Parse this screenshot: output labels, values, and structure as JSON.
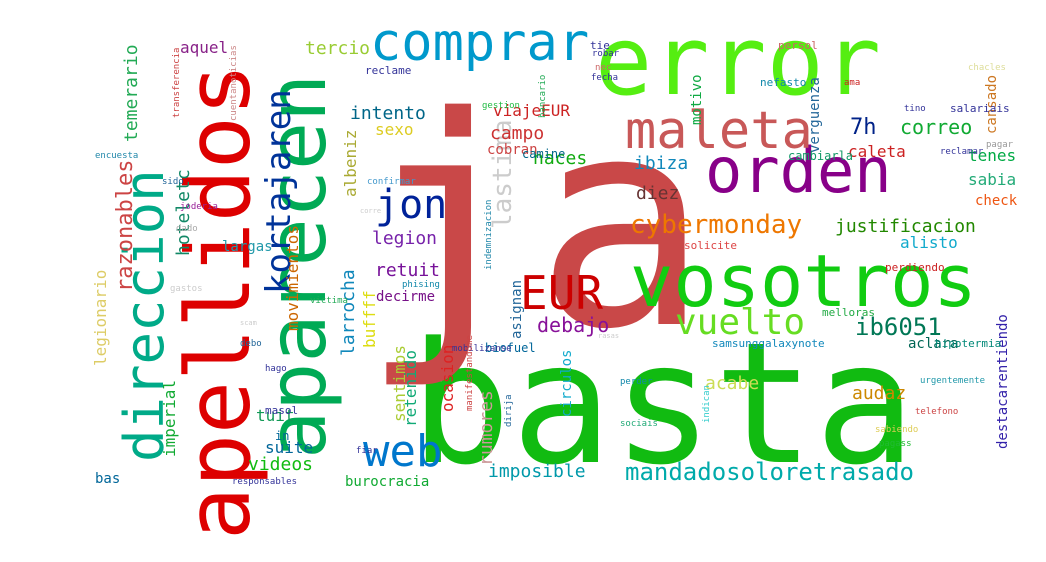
{
  "words": [
    {
      "text": "basta",
      "color": "#11bb11",
      "rotate": false
    },
    {
      "text": "ja",
      "color": "#c94848",
      "rotate": false
    },
    {
      "text": "error",
      "color": "#55ee11",
      "rotate": false
    },
    {
      "text": "apellidos",
      "color": "#dd0000",
      "rotate": true
    },
    {
      "text": "aparecen",
      "color": "#00aa55",
      "rotate": true
    },
    {
      "text": "vosotros",
      "color": "#11cc11",
      "rotate": false
    },
    {
      "text": "orden",
      "color": "#880088",
      "rotate": false
    },
    {
      "text": "comprar",
      "color": "#0099cc",
      "rotate": false
    },
    {
      "text": "maleta",
      "color": "#c85858",
      "rotate": false
    },
    {
      "text": "direccion",
      "color": "#00aa88",
      "rotate": true
    },
    {
      "text": "EUR",
      "color": "#cc0000",
      "rotate": false
    },
    {
      "text": "web",
      "color": "#0077cc",
      "rotate": false
    },
    {
      "text": "kortajaren",
      "color": "#003399",
      "rotate": true
    },
    {
      "text": "jon",
      "color": "#002299",
      "rotate": false
    },
    {
      "text": "vuelto",
      "color": "#66dd22",
      "rotate": false
    },
    {
      "text": "lastima",
      "color": "#cccccc",
      "rotate": true
    },
    {
      "text": "cybermonday",
      "color": "#ee7700",
      "rotate": false
    },
    {
      "text": "mandadosoloretrasado",
      "color": "#00aaaa",
      "rotate": false
    },
    {
      "text": "razonables",
      "color": "#cc4444",
      "rotate": true
    },
    {
      "text": "ib6051",
      "color": "#007755",
      "rotate": false
    },
    {
      "text": "debajo",
      "color": "#881199",
      "rotate": false
    },
    {
      "text": "correo",
      "color": "#11aa33",
      "rotate": false
    },
    {
      "text": "justificacion",
      "color": "#228800",
      "rotate": false
    },
    {
      "text": "imposible",
      "color": "#0099aa",
      "rotate": false
    },
    {
      "text": "videos",
      "color": "#11bb11",
      "rotate": false
    },
    {
      "text": "rumores",
      "color": "#cc9999",
      "rotate": true
    },
    {
      "text": "tercio",
      "color": "#99cc33",
      "rotate": false
    },
    {
      "text": "7h",
      "color": "#002288",
      "rotate": false
    },
    {
      "text": "haces",
      "color": "#11aa11",
      "rotate": false
    },
    {
      "text": "intento",
      "color": "#006688",
      "rotate": false
    },
    {
      "text": "viajeEUR",
      "color": "#cc2222",
      "rotate": false
    },
    {
      "text": "campo",
      "color": "#cc3333",
      "rotate": false
    },
    {
      "text": "legion",
      "color": "#7722aa",
      "rotate": false
    },
    {
      "text": "retuit",
      "color": "#771199",
      "rotate": false
    },
    {
      "text": "sexo",
      "color": "#ddcc22",
      "rotate": false
    },
    {
      "text": "temerario",
      "color": "#22aa55",
      "rotate": true
    },
    {
      "text": "hoteletc",
      "color": "#118866",
      "rotate": true
    },
    {
      "text": "legionario",
      "color": "#ddcc66",
      "rotate": true
    },
    {
      "text": "movimientos",
      "color": "#cc6600",
      "rotate": true
    },
    {
      "text": "imperial",
      "color": "#11aa33",
      "rotate": true
    },
    {
      "text": "suite",
      "color": "#006699",
      "rotate": false
    },
    {
      "text": "tuit",
      "color": "#119955",
      "rotate": false
    },
    {
      "text": "burocracia",
      "color": "#11aa33",
      "rotate": false
    },
    {
      "text": "larrocha",
      "color": "#1188bb",
      "rotate": true
    },
    {
      "text": "albeniz",
      "color": "#aaaa33",
      "rotate": true
    },
    {
      "text": "sentimos",
      "color": "#aacc33",
      "rotate": true
    },
    {
      "text": "retenido",
      "color": "#11aa77",
      "rotate": true
    },
    {
      "text": "ocasion",
      "color": "#dd2222",
      "rotate": true
    },
    {
      "text": "acabe",
      "color": "#ccdd55",
      "rotate": false
    },
    {
      "text": "audaz",
      "color": "#cc8800",
      "rotate": false
    },
    {
      "text": "ibiza",
      "color": "#1188bb",
      "rotate": false
    },
    {
      "text": "diez",
      "color": "#663333",
      "rotate": false
    },
    {
      "text": "tenes",
      "color": "#00aa44",
      "rotate": false
    },
    {
      "text": "sabia",
      "color": "#22aa77",
      "rotate": false
    },
    {
      "text": "caleta",
      "color": "#cc2222",
      "rotate": false
    },
    {
      "text": "alisto",
      "color": "#11aacc",
      "rotate": false
    },
    {
      "text": "aclara",
      "color": "#006655",
      "rotate": false
    },
    {
      "text": "aquel",
      "color": "#882288",
      "rotate": false
    },
    {
      "text": "largas",
      "color": "#2299aa",
      "rotate": false
    },
    {
      "text": "decirme",
      "color": "#771188",
      "rotate": false
    },
    {
      "text": "cobran",
      "color": "#cc4444",
      "rotate": false
    },
    {
      "text": "buffff",
      "color": "#dddd11",
      "rotate": true
    },
    {
      "text": "circulos",
      "color": "#11aacc",
      "rotate": true
    },
    {
      "text": "motivo",
      "color": "#11aa44",
      "rotate": true
    },
    {
      "text": "verguenza",
      "color": "#226699",
      "rotate": true
    },
    {
      "text": "cansado",
      "color": "#cc7722",
      "rotate": true
    },
    {
      "text": "destacarentiendo",
      "color": "#3322aa",
      "rotate": true
    },
    {
      "text": "cambiarla",
      "color": "#119966",
      "rotate": false
    },
    {
      "text": "camine",
      "color": "#006688",
      "rotate": false
    },
    {
      "text": "check",
      "color": "#ee5511",
      "rotate": false
    },
    {
      "text": "asignan",
      "color": "#226699",
      "rotate": true
    },
    {
      "text": "biofuel",
      "color": "#006699",
      "rotate": false
    },
    {
      "text": "in",
      "color": "#006699",
      "rotate": false
    },
    {
      "text": "masol",
      "color": "#333399",
      "rotate": false
    },
    {
      "text": "bas",
      "color": "#006699",
      "rotate": false
    },
    {
      "text": "nefasto",
      "color": "#1188aa",
      "rotate": false
    },
    {
      "text": "hipotermia",
      "color": "#008877",
      "rotate": false
    },
    {
      "text": "perdiendo",
      "color": "#cc2222",
      "rotate": false
    },
    {
      "text": "solicite",
      "color": "#dd4444",
      "rotate": false
    },
    {
      "text": "melloras",
      "color": "#22aa44",
      "rotate": false
    },
    {
      "text": "samsunggalaxynote",
      "color": "#1188bb",
      "rotate": false
    },
    {
      "text": "salariais",
      "color": "#333399",
      "rotate": false
    },
    {
      "text": "persol",
      "color": "#cc6666",
      "rotate": false
    },
    {
      "text": "reclame",
      "color": "#333399",
      "rotate": false
    },
    {
      "text": "tie",
      "color": "#333399",
      "rotate": false
    },
    {
      "text": "gestion",
      "color": "#22bb44",
      "rotate": false
    },
    {
      "text": "transferencia",
      "color": "#cc4444",
      "rotate": true
    },
    {
      "text": "cuentanoticias",
      "color": "#cc8888",
      "rotate": true
    },
    {
      "text": "bancario",
      "color": "#22aa55",
      "rotate": true
    },
    {
      "text": "encuesta",
      "color": "#2288aa",
      "rotate": false
    },
    {
      "text": "sido",
      "color": "#226699",
      "rotate": false
    },
    {
      "text": "joderia",
      "color": "#992299",
      "rotate": false
    },
    {
      "text": "dado",
      "color": "#aaaaaa",
      "rotate": false
    },
    {
      "text": "gastos",
      "color": "#cccccc",
      "rotate": false
    },
    {
      "text": "confirmar",
      "color": "#4499cc",
      "rotate": false
    },
    {
      "text": "indemnizacion",
      "color": "#2288aa",
      "rotate": true
    },
    {
      "text": "mobilizanse",
      "color": "#333399",
      "rotate": false
    },
    {
      "text": "manifestandome",
      "color": "#cc4444",
      "rotate": true
    },
    {
      "text": "dirija",
      "color": "#226699",
      "rotate": true
    },
    {
      "text": "perder",
      "color": "#1188aa",
      "rotate": false
    },
    {
      "text": "sociais",
      "color": "#22aa77",
      "rotate": false
    },
    {
      "text": "pagass",
      "color": "#22bb33",
      "rotate": false
    },
    {
      "text": "indican",
      "color": "#33cccc",
      "rotate": true
    },
    {
      "text": "telefono",
      "color": "#cc4444",
      "rotate": false
    },
    {
      "text": "sabiendo",
      "color": "#ddcc55",
      "rotate": false
    },
    {
      "text": "urgentemente",
      "color": "#2299aa",
      "rotate": false
    },
    {
      "text": "responsables",
      "color": "#333399",
      "rotate": false
    },
    {
      "text": "fiar",
      "color": "#333399",
      "rotate": false
    },
    {
      "text": "hago",
      "color": "#333399",
      "rotate": false
    },
    {
      "text": "debo",
      "color": "#226699",
      "rotate": false
    },
    {
      "text": "victima",
      "color": "#22aa55",
      "rotate": false
    },
    {
      "text": "phising",
      "color": "#1188aa",
      "rotate": false
    },
    {
      "text": "chacles",
      "color": "#dddd99",
      "rotate": false
    },
    {
      "text": "reclamar",
      "color": "#333399",
      "rotate": false
    },
    {
      "text": "pagar",
      "color": "#999999",
      "rotate": false
    },
    {
      "text": "tino",
      "color": "#333399",
      "rotate": false
    },
    {
      "text": "fecha",
      "color": "#333399",
      "rotate": false
    },
    {
      "text": "robar",
      "color": "#333399",
      "rotate": false
    },
    {
      "text": "nec",
      "color": "#cc6666",
      "rotate": false
    },
    {
      "text": "ama",
      "color": "#cc2222",
      "rotate": false
    },
    {
      "text": "scam",
      "color": "#cccccc",
      "rotate": false
    },
    {
      "text": "rasas",
      "color": "#cccccc",
      "rotate": false
    },
    {
      "text": "corre",
      "color": "#cccccc",
      "rotate": false
    }
  ]
}
